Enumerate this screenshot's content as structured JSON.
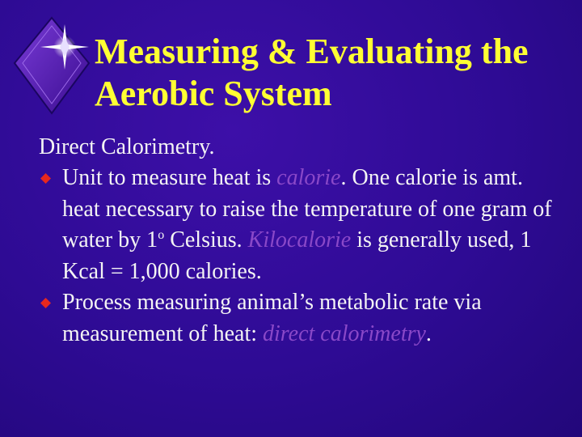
{
  "title": "Measuring & Evaluating the Aerobic System",
  "heading": "Direct Calorimetry.",
  "bullets": [
    {
      "segments": [
        {
          "text": "Unit to measure heat is "
        },
        {
          "text": "calorie",
          "emphasis": true
        },
        {
          "text": ". One calorie is amt. heat necessary to raise the temperature of one gram of water by 1"
        },
        {
          "text": "o",
          "superscript": true
        },
        {
          "text": " Celsius. "
        },
        {
          "text": "Kilocalorie",
          "emphasis": true
        },
        {
          "text": " is generally used, 1 Kcal = 1,000 calories."
        }
      ]
    },
    {
      "segments": [
        {
          "text": "Process measuring animal’s metabolic rate via measurement of heat: "
        },
        {
          "text": "direct calorimetry",
          "emphasis": true
        },
        {
          "text": "."
        }
      ]
    }
  ]
}
